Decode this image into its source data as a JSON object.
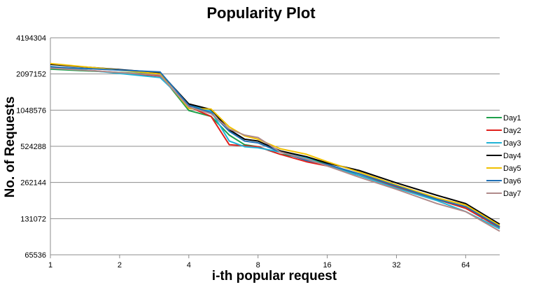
{
  "chart_data": {
    "type": "line",
    "title": "Popularity Plot",
    "xlabel": "i-th popular request",
    "ylabel": "No. of Requests",
    "x_scale": "log2",
    "y_scale": "log2",
    "xlim": [
      1,
      90
    ],
    "ylim": [
      65536,
      4194304
    ],
    "x_ticks": [
      "1",
      "2",
      "4",
      "8",
      "16",
      "32",
      "64"
    ],
    "y_ticks": [
      "4194304",
      "2097152",
      "1048576",
      "524288",
      "262144",
      "131072",
      "65536"
    ],
    "grid": "horizontal",
    "legend_position": "right",
    "series": [
      {
        "name": "Day1",
        "color": "#1ea04a",
        "points": [
          [
            1,
            2300000
          ],
          [
            3,
            2080000
          ],
          [
            4,
            1040000
          ],
          [
            5,
            930000
          ],
          [
            6,
            650000
          ],
          [
            7,
            540000
          ],
          [
            8,
            520000
          ],
          [
            10,
            450000
          ],
          [
            13,
            420000
          ],
          [
            16,
            370000
          ],
          [
            22,
            300000
          ],
          [
            32,
            240000
          ],
          [
            48,
            190000
          ],
          [
            64,
            160000
          ],
          [
            90,
            112000
          ]
        ]
      },
      {
        "name": "Day2",
        "color": "#e0201c",
        "points": [
          [
            1,
            2380000
          ],
          [
            3,
            2020000
          ],
          [
            4,
            1120000
          ],
          [
            5,
            930000
          ],
          [
            6,
            540000
          ],
          [
            7,
            530000
          ],
          [
            8,
            520000
          ],
          [
            10,
            450000
          ],
          [
            13,
            390000
          ],
          [
            16,
            360000
          ],
          [
            22,
            300000
          ],
          [
            32,
            240000
          ],
          [
            48,
            190000
          ],
          [
            64,
            160000
          ],
          [
            90,
            110000
          ]
        ]
      },
      {
        "name": "Day3",
        "color": "#20b3d6",
        "points": [
          [
            1,
            2420000
          ],
          [
            3,
            1960000
          ],
          [
            4,
            1160000
          ],
          [
            5,
            1030000
          ],
          [
            6,
            580000
          ],
          [
            7,
            520000
          ],
          [
            8,
            510000
          ],
          [
            10,
            470000
          ],
          [
            13,
            420000
          ],
          [
            16,
            360000
          ],
          [
            22,
            300000
          ],
          [
            32,
            235000
          ],
          [
            48,
            185000
          ],
          [
            64,
            150000
          ],
          [
            90,
            108000
          ]
        ]
      },
      {
        "name": "Day4",
        "color": "#000000",
        "points": [
          [
            1,
            2520000
          ],
          [
            3,
            2150000
          ],
          [
            4,
            1180000
          ],
          [
            5,
            1060000
          ],
          [
            6,
            720000
          ],
          [
            7,
            600000
          ],
          [
            8,
            580000
          ],
          [
            10,
            480000
          ],
          [
            13,
            430000
          ],
          [
            16,
            380000
          ],
          [
            22,
            330000
          ],
          [
            32,
            260000
          ],
          [
            48,
            205000
          ],
          [
            64,
            175000
          ],
          [
            90,
            118000
          ]
        ]
      },
      {
        "name": "Day5",
        "color": "#f0c000",
        "points": [
          [
            1,
            2560000
          ],
          [
            3,
            2100000
          ],
          [
            4,
            1080000
          ],
          [
            5,
            1070000
          ],
          [
            6,
            760000
          ],
          [
            7,
            640000
          ],
          [
            8,
            600000
          ],
          [
            10,
            500000
          ],
          [
            13,
            450000
          ],
          [
            16,
            390000
          ],
          [
            22,
            320000
          ],
          [
            32,
            250000
          ],
          [
            48,
            195000
          ],
          [
            64,
            170000
          ],
          [
            90,
            115000
          ]
        ]
      },
      {
        "name": "Day6",
        "color": "#1f6fb4",
        "points": [
          [
            1,
            2400000
          ],
          [
            3,
            2180000
          ],
          [
            4,
            1150000
          ],
          [
            5,
            1000000
          ],
          [
            6,
            700000
          ],
          [
            7,
            580000
          ],
          [
            8,
            560000
          ],
          [
            10,
            470000
          ],
          [
            13,
            400000
          ],
          [
            16,
            370000
          ],
          [
            22,
            310000
          ],
          [
            32,
            245000
          ],
          [
            48,
            190000
          ],
          [
            64,
            165000
          ],
          [
            90,
            112000
          ]
        ]
      },
      {
        "name": "Day7",
        "color": "#b08a8a",
        "points": [
          [
            1,
            2350000
          ],
          [
            3,
            2050000
          ],
          [
            4,
            1110000
          ],
          [
            5,
            980000
          ],
          [
            6,
            730000
          ],
          [
            7,
            650000
          ],
          [
            8,
            620000
          ],
          [
            10,
            470000
          ],
          [
            13,
            410000
          ],
          [
            16,
            360000
          ],
          [
            22,
            290000
          ],
          [
            32,
            230000
          ],
          [
            48,
            175000
          ],
          [
            64,
            150000
          ],
          [
            90,
            103000
          ]
        ]
      }
    ]
  }
}
